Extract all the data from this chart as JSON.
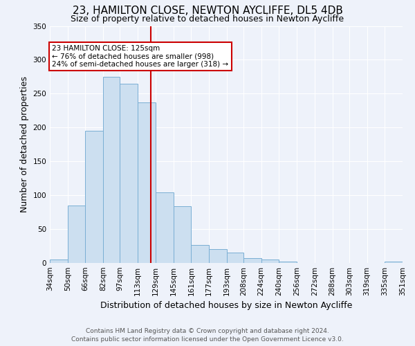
{
  "title": "23, HAMILTON CLOSE, NEWTON AYCLIFFE, DL5 4DB",
  "subtitle": "Size of property relative to detached houses in Newton Aycliffe",
  "xlabel": "Distribution of detached houses by size in Newton Aycliffe",
  "ylabel": "Number of detached properties",
  "bin_edges": [
    34,
    50,
    66,
    82,
    97,
    113,
    129,
    145,
    161,
    177,
    193,
    208,
    224,
    240,
    256,
    272,
    288,
    303,
    319,
    335,
    351
  ],
  "bar_heights": [
    5,
    85,
    195,
    275,
    265,
    237,
    104,
    84,
    27,
    20,
    15,
    7,
    5,
    2,
    0,
    0,
    0,
    0,
    0,
    2
  ],
  "bar_color": "#ccdff0",
  "bar_edge_color": "#7aafd4",
  "vline_x": 125,
  "vline_color": "#cc0000",
  "ylim": [
    0,
    350
  ],
  "annotation_text": "23 HAMILTON CLOSE: 125sqm\n← 76% of detached houses are smaller (998)\n24% of semi-detached houses are larger (318) →",
  "annotation_box_color": "#ffffff",
  "annotation_box_edge": "#cc0000",
  "footer_line1": "Contains HM Land Registry data © Crown copyright and database right 2024.",
  "footer_line2": "Contains public sector information licensed under the Open Government Licence v3.0.",
  "tick_labels": [
    "34sqm",
    "50sqm",
    "66sqm",
    "82sqm",
    "97sqm",
    "113sqm",
    "129sqm",
    "145sqm",
    "161sqm",
    "177sqm",
    "193sqm",
    "208sqm",
    "224sqm",
    "240sqm",
    "256sqm",
    "272sqm",
    "288sqm",
    "303sqm",
    "319sqm",
    "335sqm",
    "351sqm"
  ],
  "background_color": "#eef2fa",
  "grid_color": "#ffffff",
  "title_fontsize": 11,
  "subtitle_fontsize": 9,
  "axis_label_fontsize": 9,
  "tick_fontsize": 7.5,
  "footer_fontsize": 6.5
}
